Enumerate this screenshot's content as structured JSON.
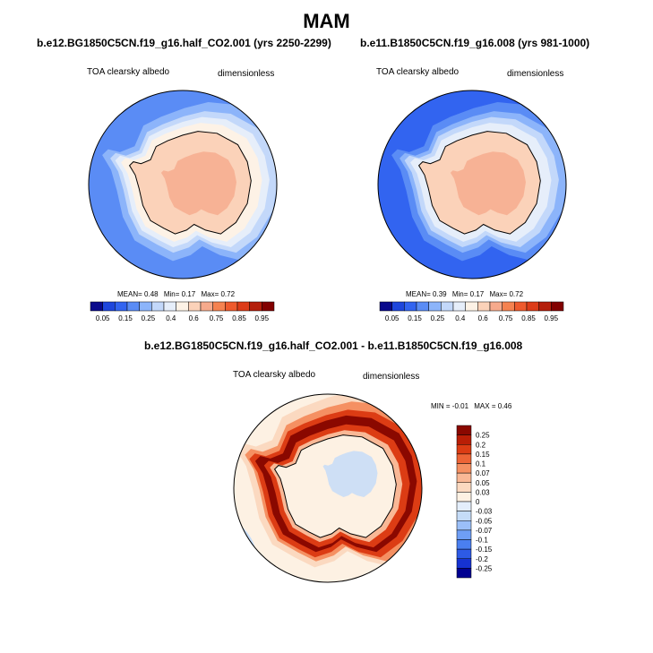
{
  "page": {
    "title": "MAM"
  },
  "colors": {
    "scale": [
      "#0a0a8c",
      "#1e46dc",
      "#3264f0",
      "#5a8cf5",
      "#8cb4fa",
      "#c3d8fa",
      "#e6eefa",
      "#fdf2e6",
      "#fbd2b9",
      "#f6aa8c",
      "#f58250",
      "#ee5a2d",
      "#dc3c19",
      "#b41e0a",
      "#820000"
    ],
    "diff": [
      "#000091",
      "#1632d2",
      "#2d5ae6",
      "#4a7ff0",
      "#6e9ef5",
      "#9bbff8",
      "#c5dcf8",
      "#e4eefb",
      "#fdf1e3",
      "#fbd9c0",
      "#f9b896",
      "#f59062",
      "#ed6436",
      "#dc3c14",
      "#b91e06",
      "#8a0800"
    ]
  },
  "chart_data": [
    {
      "type": "polar-contour-map",
      "title": "b.e12.BG1850C5CN.f19_g16.half_CO2.001 (yrs 2250-2299)",
      "variable": "TOA clearsky albedo",
      "units": "dimensionless",
      "stats": {
        "mean_label": "MEAN=",
        "mean": "0.48",
        "min_label": "Min=",
        "min": "0.17",
        "max_label": "Max=",
        "max": "0.72"
      },
      "colorbar": {
        "ticks": [
          "0.05",
          "0.15",
          "0.25",
          "0.4",
          "0.6",
          "0.75",
          "0.85",
          "0.95"
        ]
      },
      "field": {
        "ocean": 3,
        "shelf": 4,
        "ring_levels": [
          5,
          6,
          7
        ],
        "ice": 8,
        "ice_inner": 9
      }
    },
    {
      "type": "polar-contour-map",
      "title": "b.e11.B1850C5CN.f19_g16.008 (yrs 981-1000)",
      "variable": "TOA clearsky albedo",
      "units": "dimensionless",
      "stats": {
        "mean_label": "MEAN=",
        "mean": "0.39",
        "min_label": "Min=",
        "min": "0.17",
        "max_label": "Max=",
        "max": "0.72"
      },
      "colorbar": {
        "ticks": [
          "0.05",
          "0.15",
          "0.25",
          "0.4",
          "0.6",
          "0.75",
          "0.85",
          "0.95"
        ]
      },
      "field": {
        "ocean": 2,
        "shelf": 3,
        "ring_levels": [
          4,
          5,
          6
        ],
        "ice": 8,
        "ice_inner": 9
      }
    },
    {
      "type": "polar-contour-map-difference",
      "title": "b.e12.BG1850C5CN.f19_g16.half_CO2.001 - b.e11.B1850C5CN.f19_g16.008",
      "variable": "TOA clearsky albedo",
      "units": "dimensionless",
      "stats": {
        "min_label": "MIN =",
        "min": "-0.01",
        "max_label": "MAX =",
        "max": "0.46"
      },
      "colorbar": {
        "ticks": [
          "0.25",
          "0.2",
          "0.15",
          "0.1",
          "0.07",
          "0.05",
          "0.03",
          "0",
          "-0.03",
          "-0.05",
          "-0.07",
          "-0.1",
          "-0.15",
          "-0.2",
          "-0.25"
        ]
      }
    }
  ]
}
